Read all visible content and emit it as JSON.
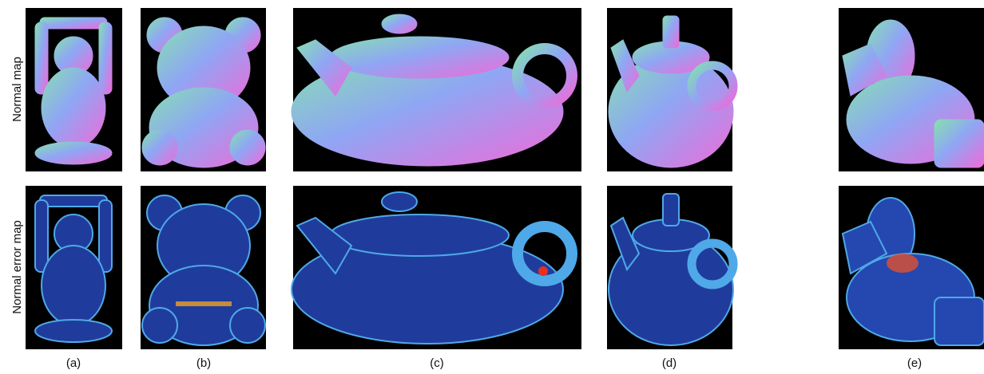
{
  "row_labels": [
    "Normal map",
    "Normal error map"
  ],
  "columns": [
    "(a)",
    "(b)",
    "(c)",
    "(d)",
    "(e)"
  ]
}
